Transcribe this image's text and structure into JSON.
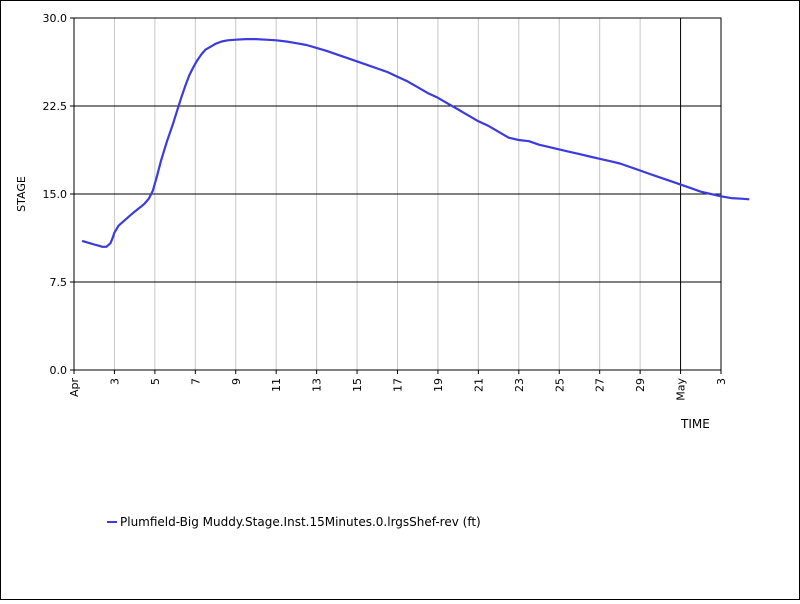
{
  "chart_data": {
    "type": "line",
    "title": "",
    "xlabel": "TIME",
    "ylabel": "STAGE",
    "ylim": [
      0,
      30
    ],
    "yticks": [
      "0.0",
      "7.5",
      "15.0",
      "22.5",
      "30.0"
    ],
    "xlim": [
      0,
      32
    ],
    "x_ticks": [
      {
        "x": 0,
        "label": "Apr"
      },
      {
        "x": 2,
        "label": "3"
      },
      {
        "x": 4,
        "label": "5"
      },
      {
        "x": 6,
        "label": "7"
      },
      {
        "x": 8,
        "label": "9"
      },
      {
        "x": 10,
        "label": "11"
      },
      {
        "x": 12,
        "label": "13"
      },
      {
        "x": 14,
        "label": "15"
      },
      {
        "x": 16,
        "label": "17"
      },
      {
        "x": 18,
        "label": "19"
      },
      {
        "x": 20,
        "label": "21"
      },
      {
        "x": 22,
        "label": "23"
      },
      {
        "x": 24,
        "label": "25"
      },
      {
        "x": 26,
        "label": "27"
      },
      {
        "x": 28,
        "label": "29"
      },
      {
        "x": 30,
        "label": "May"
      },
      {
        "x": 32,
        "label": "3"
      }
    ],
    "grid": true,
    "legend_position": "bottom-left",
    "series": [
      {
        "name": "Plumfield-Big Muddy.Stage.Inst.15Minutes.0.lrgsShef-rev (ft)",
        "color": "#3b3be0",
        "points": [
          [
            0.4,
            11.0
          ],
          [
            0.6,
            10.9
          ],
          [
            0.8,
            10.8
          ],
          [
            1.0,
            10.7
          ],
          [
            1.2,
            10.6
          ],
          [
            1.4,
            10.5
          ],
          [
            1.6,
            10.5
          ],
          [
            1.8,
            10.8
          ],
          [
            1.9,
            11.2
          ],
          [
            2.0,
            11.7
          ],
          [
            2.2,
            12.3
          ],
          [
            2.4,
            12.6
          ],
          [
            2.6,
            12.9
          ],
          [
            2.8,
            13.2
          ],
          [
            3.0,
            13.5
          ],
          [
            3.3,
            13.9
          ],
          [
            3.5,
            14.2
          ],
          [
            3.7,
            14.6
          ],
          [
            3.9,
            15.3
          ],
          [
            4.1,
            16.5
          ],
          [
            4.3,
            17.8
          ],
          [
            4.6,
            19.5
          ],
          [
            4.9,
            21.0
          ],
          [
            5.1,
            22.1
          ],
          [
            5.3,
            23.2
          ],
          [
            5.5,
            24.2
          ],
          [
            5.7,
            25.1
          ],
          [
            5.9,
            25.8
          ],
          [
            6.1,
            26.4
          ],
          [
            6.3,
            26.9
          ],
          [
            6.5,
            27.3
          ],
          [
            6.8,
            27.6
          ],
          [
            7.0,
            27.8
          ],
          [
            7.3,
            28.0
          ],
          [
            7.6,
            28.1
          ],
          [
            8.0,
            28.15
          ],
          [
            8.5,
            28.2
          ],
          [
            9.0,
            28.2
          ],
          [
            9.5,
            28.15
          ],
          [
            10.0,
            28.1
          ],
          [
            10.5,
            28.0
          ],
          [
            11.0,
            27.85
          ],
          [
            11.5,
            27.7
          ],
          [
            12.0,
            27.45
          ],
          [
            12.5,
            27.2
          ],
          [
            13.0,
            26.9
          ],
          [
            13.5,
            26.6
          ],
          [
            14.0,
            26.3
          ],
          [
            14.5,
            26.0
          ],
          [
            15.0,
            25.7
          ],
          [
            15.5,
            25.4
          ],
          [
            16.0,
            25.0
          ],
          [
            16.5,
            24.6
          ],
          [
            17.0,
            24.1
          ],
          [
            17.5,
            23.6
          ],
          [
            18.0,
            23.2
          ],
          [
            18.5,
            22.7
          ],
          [
            19.0,
            22.2
          ],
          [
            19.5,
            21.7
          ],
          [
            20.0,
            21.2
          ],
          [
            20.5,
            20.8
          ],
          [
            21.0,
            20.3
          ],
          [
            21.5,
            19.8
          ],
          [
            22.0,
            19.6
          ],
          [
            22.5,
            19.5
          ],
          [
            23.0,
            19.2
          ],
          [
            23.5,
            19.0
          ],
          [
            24.0,
            18.8
          ],
          [
            24.5,
            18.6
          ],
          [
            25.0,
            18.4
          ],
          [
            25.5,
            18.2
          ],
          [
            26.0,
            18.0
          ],
          [
            26.5,
            17.8
          ],
          [
            27.0,
            17.6
          ],
          [
            27.5,
            17.3
          ],
          [
            28.0,
            17.0
          ],
          [
            28.5,
            16.7
          ],
          [
            29.0,
            16.4
          ],
          [
            29.5,
            16.1
          ],
          [
            30.0,
            15.8
          ],
          [
            30.5,
            15.5
          ],
          [
            31.0,
            15.2
          ],
          [
            31.5,
            15.0
          ],
          [
            32.0,
            14.8
          ],
          [
            32.5,
            14.65
          ],
          [
            33.0,
            14.6
          ],
          [
            33.4,
            14.55
          ]
        ]
      }
    ]
  }
}
